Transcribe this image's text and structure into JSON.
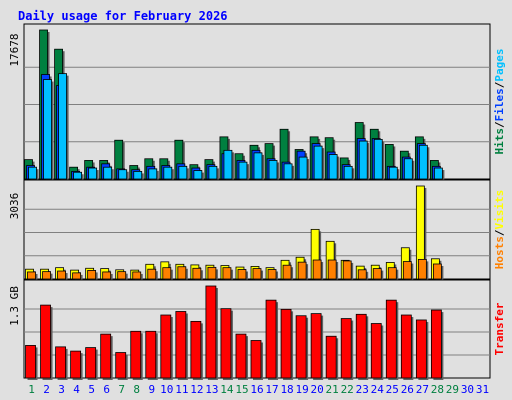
{
  "chart_data": {
    "type": "bar",
    "title": "Daily usage for February 2026",
    "days": [
      "1",
      "2",
      "3",
      "4",
      "5",
      "6",
      "7",
      "8",
      "9",
      "10",
      "11",
      "12",
      "13",
      "14",
      "15",
      "16",
      "17",
      "18",
      "19",
      "20",
      "21",
      "22",
      "23",
      "24",
      "25",
      "26",
      "27",
      "28",
      "29",
      "30",
      "31"
    ],
    "weekend_days": [
      "1",
      "7",
      "8",
      "14",
      "15",
      "21",
      "22",
      "28",
      "29"
    ],
    "panels": [
      {
        "id": "hits",
        "max_label": "17678",
        "ymax": 17678,
        "right_labels": [
          {
            "text": "Hits",
            "color": "#008040"
          },
          {
            "text": "/",
            "color": "#000000"
          },
          {
            "text": "Files",
            "color": "#0040ff"
          },
          {
            "text": "/",
            "color": "#000000"
          },
          {
            "text": "Pages",
            "color": "#00c0ff"
          }
        ],
        "series": [
          {
            "name": "Hits",
            "color": "#008040",
            "values": [
              2300,
              17678,
              15400,
              1400,
              2200,
              2200,
              4600,
              1600,
              2400,
              2400,
              4600,
              1700,
              2300,
              5000,
              3000,
              4000,
              4200,
              5900,
              3500,
              5000,
              4900,
              2500,
              6700,
              5900,
              4100,
              3300,
              5000,
              2200,
              0,
              0,
              0
            ]
          },
          {
            "name": "Files",
            "color": "#0040ff",
            "values": [
              1600,
              12400,
              11100,
              900,
              1400,
              1800,
              1200,
              1100,
              1500,
              1600,
              1800,
              1300,
              1700,
              3000,
              2200,
              3400,
              2400,
              2000,
              3300,
              4200,
              3200,
              1700,
              4800,
              4800,
              1500,
              2600,
              4200,
              1500,
              0,
              0,
              0
            ]
          },
          {
            "name": "Pages",
            "color": "#00c0ff",
            "values": [
              1400,
              11800,
              12500,
              800,
              1300,
              1400,
              1100,
              900,
              1200,
              1400,
              1500,
              1000,
              1500,
              3400,
              2000,
              3100,
              2200,
              1800,
              2600,
              3900,
              2900,
              1500,
              4500,
              4700,
              1400,
              2400,
              4000,
              1300,
              0,
              0,
              0
            ]
          }
        ]
      },
      {
        "id": "visits",
        "max_label": "3036",
        "ymax": 3036,
        "right_labels": [
          {
            "text": "Hosts",
            "color": "#ff8000"
          },
          {
            "text": "/",
            "color": "#000000"
          },
          {
            "text": "Visits",
            "color": "#ffff00"
          }
        ],
        "series": [
          {
            "name": "Visits",
            "color": "#ffff00",
            "values": [
              320,
              320,
              370,
              290,
              350,
              340,
              300,
              290,
              480,
              560,
              480,
              460,
              450,
              440,
              390,
              410,
              370,
              610,
              710,
              1620,
              1230,
              610,
              420,
              450,
              540,
              1020,
              3036,
              660,
              0,
              0,
              0
            ]
          },
          {
            "name": "Hosts",
            "color": "#ff8000",
            "values": [
              230,
              240,
              260,
              200,
              280,
              230,
              240,
              230,
              320,
              370,
              400,
              350,
              380,
              370,
              310,
              340,
              310,
              450,
              550,
              620,
              620,
              590,
              300,
              340,
              370,
              570,
              640,
              490,
              0,
              0,
              0
            ]
          }
        ]
      },
      {
        "id": "transfer",
        "max_label": "1.3 GB",
        "ymax": 1.3,
        "unit": "GB",
        "right_labels": [
          {
            "text": "Transfer",
            "color": "#ff0000"
          }
        ],
        "series": [
          {
            "name": "Transfer",
            "color": "#ff0000",
            "values": [
              0.46,
              1.03,
              0.44,
              0.38,
              0.43,
              0.62,
              0.36,
              0.66,
              0.66,
              0.89,
              0.94,
              0.8,
              1.3,
              0.98,
              0.62,
              0.53,
              1.1,
              0.97,
              0.88,
              0.91,
              0.59,
              0.84,
              0.9,
              0.77,
              1.1,
              0.89,
              0.82,
              0.96,
              0,
              0,
              0
            ]
          }
        ]
      }
    ]
  },
  "colors": {
    "background": "#e0e0e0",
    "plot_background": "#e0e0e0",
    "gridline": "#808080",
    "border": "#000000",
    "title": "#0000ff",
    "weekday_label": "#0000ff",
    "weekend_label": "#008040"
  }
}
